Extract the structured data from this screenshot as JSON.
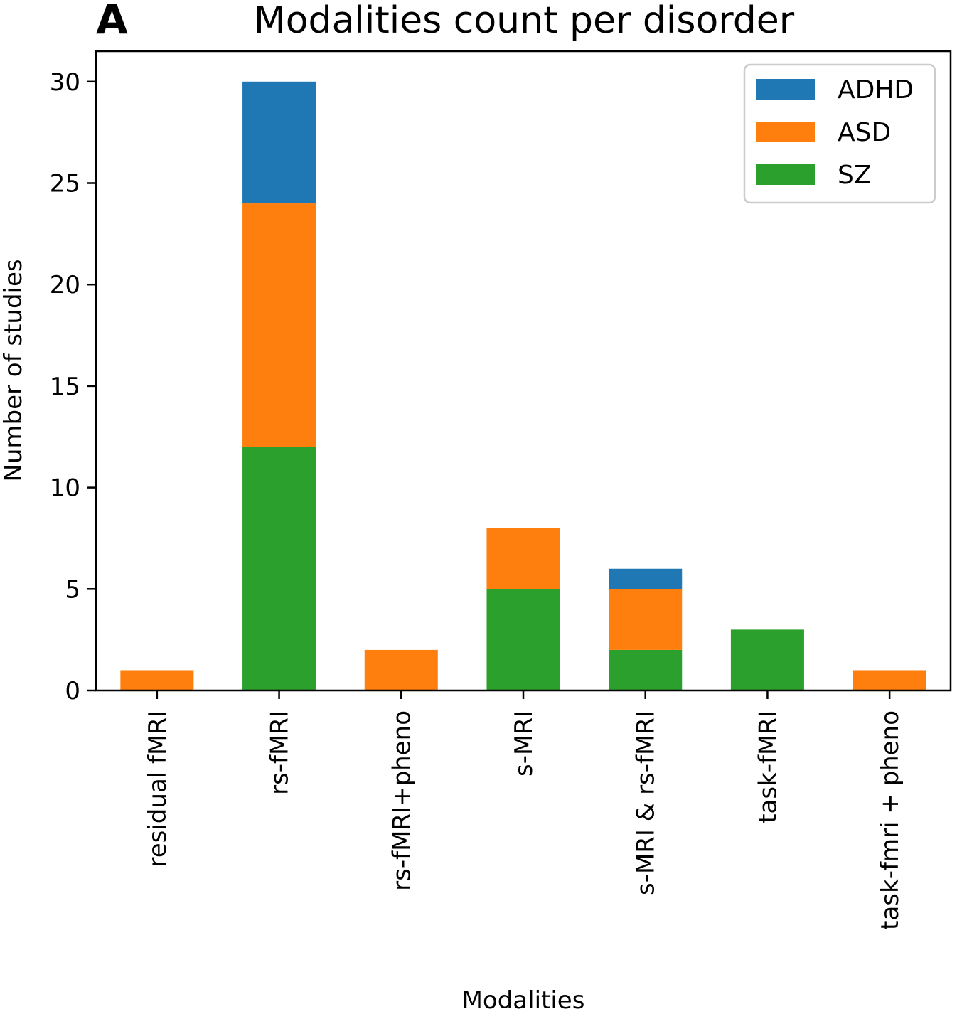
{
  "panel_label": "A",
  "chart_data": {
    "type": "bar",
    "stacked": true,
    "title": "Modalities count per disorder",
    "xlabel": "Modalities",
    "ylabel": "Number of studies",
    "categories": [
      "residual fMRI",
      "rs-fMRI",
      "rs-fMRI+pheno",
      "s-MRI",
      "s-MRI & rs-fMRI",
      "task-fMRI",
      "task-fmri + pheno"
    ],
    "series": [
      {
        "name": "SZ",
        "color": "#2ca02c",
        "values": [
          0,
          12,
          0,
          5,
          2,
          3,
          0
        ]
      },
      {
        "name": "ASD",
        "color": "#ff7f0e",
        "values": [
          1,
          12,
          2,
          3,
          3,
          0,
          1
        ]
      },
      {
        "name": "ADHD",
        "color": "#1f77b4",
        "values": [
          0,
          6,
          0,
          0,
          1,
          0,
          0
        ]
      }
    ],
    "legend_order": [
      "ADHD",
      "ASD",
      "SZ"
    ],
    "legend_position": "top-right",
    "ylim": [
      0,
      31.5
    ],
    "yticks": [
      0,
      5,
      10,
      15,
      20,
      25,
      30
    ],
    "grid": false
  }
}
